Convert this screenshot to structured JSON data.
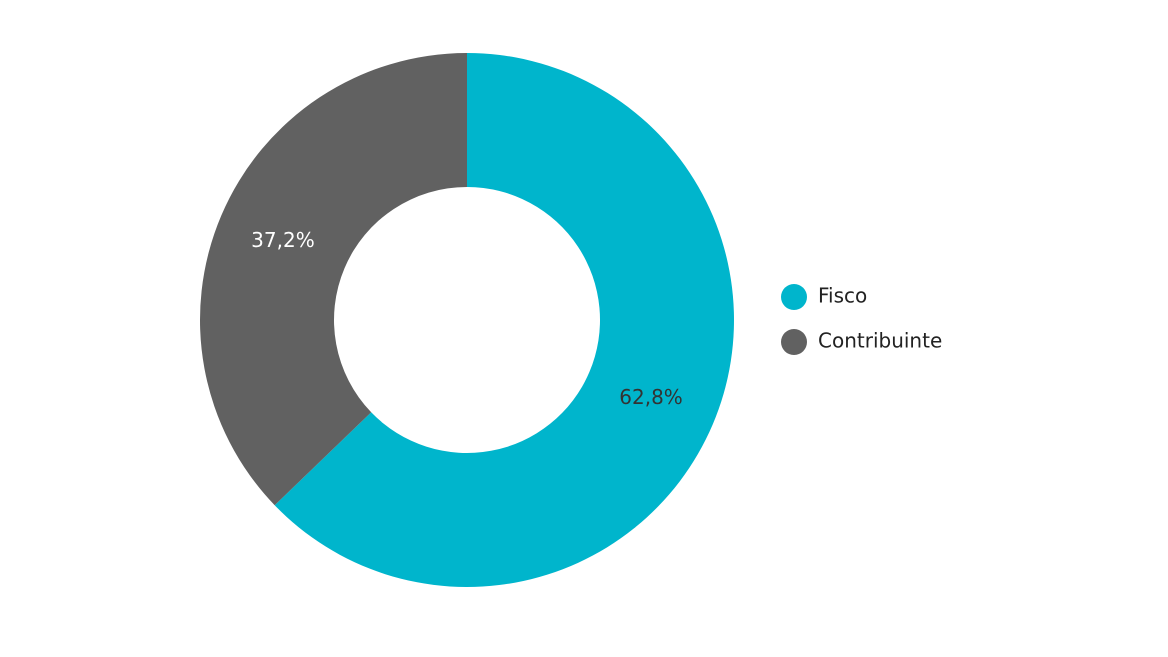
{
  "chart_data": {
    "type": "donut",
    "categories": [
      "Fisco",
      "Contribuinte"
    ],
    "values": [
      62.8,
      37.2
    ],
    "value_labels": [
      "62,8%",
      "37,2%"
    ],
    "colors": [
      "#00b5cc",
      "#616161"
    ],
    "label_colors": [
      "#333333",
      "#ffffff"
    ],
    "legend": "right"
  }
}
